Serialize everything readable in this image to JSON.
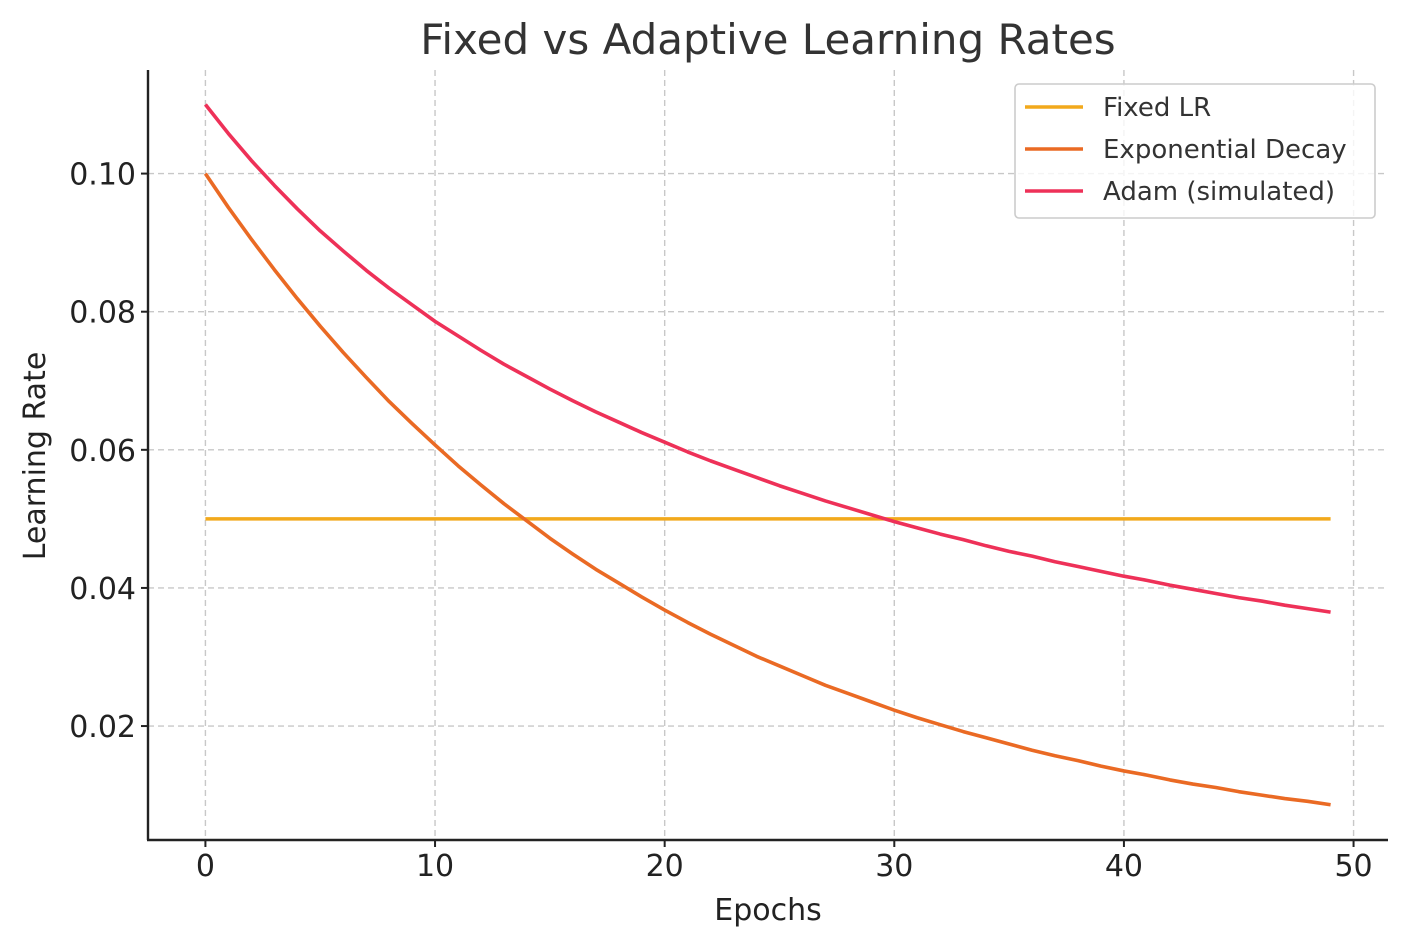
{
  "chart_data": {
    "type": "line",
    "title": "Fixed vs Adaptive Learning Rates",
    "xlabel": "Epochs",
    "ylabel": "Learning Rate",
    "xlim": [
      -2.5,
      51.5
    ],
    "ylim": [
      0.0035,
      0.115
    ],
    "xticks": [
      0,
      10,
      20,
      30,
      40,
      50
    ],
    "xtick_labels": [
      "0",
      "10",
      "20",
      "30",
      "40",
      "50"
    ],
    "yticks": [
      0.02,
      0.04,
      0.06,
      0.08,
      0.1
    ],
    "ytick_labels": [
      "0.02",
      "0.04",
      "0.06",
      "0.08",
      "0.10"
    ],
    "grid": true,
    "legend_position": "top-right",
    "x": [
      0,
      1,
      2,
      3,
      4,
      5,
      6,
      7,
      8,
      9,
      10,
      11,
      12,
      13,
      14,
      15,
      16,
      17,
      18,
      19,
      20,
      21,
      22,
      23,
      24,
      25,
      26,
      27,
      28,
      29,
      30,
      31,
      32,
      33,
      34,
      35,
      36,
      37,
      38,
      39,
      40,
      41,
      42,
      43,
      44,
      45,
      46,
      47,
      48,
      49
    ],
    "series": [
      {
        "name": "Fixed LR",
        "color": "#f2a91c",
        "values": [
          0.05,
          0.05,
          0.05,
          0.05,
          0.05,
          0.05,
          0.05,
          0.05,
          0.05,
          0.05,
          0.05,
          0.05,
          0.05,
          0.05,
          0.05,
          0.05,
          0.05,
          0.05,
          0.05,
          0.05,
          0.05,
          0.05,
          0.05,
          0.05,
          0.05,
          0.05,
          0.05,
          0.05,
          0.05,
          0.05,
          0.05,
          0.05,
          0.05,
          0.05,
          0.05,
          0.05,
          0.05,
          0.05,
          0.05,
          0.05,
          0.05,
          0.05,
          0.05,
          0.05,
          0.05,
          0.05,
          0.05,
          0.05,
          0.05,
          0.05
        ]
      },
      {
        "name": "Exponential Decay",
        "color": "#ea6a24",
        "values": [
          0.1,
          0.0951,
          0.0905,
          0.0861,
          0.0819,
          0.0779,
          0.0741,
          0.0705,
          0.067,
          0.0638,
          0.0607,
          0.0577,
          0.0549,
          0.0522,
          0.0497,
          0.0472,
          0.0449,
          0.0427,
          0.0407,
          0.0387,
          0.0368,
          0.035,
          0.0333,
          0.0317,
          0.0301,
          0.0287,
          0.0273,
          0.0259,
          0.0247,
          0.0235,
          0.0223,
          0.0212,
          0.0202,
          0.0192,
          0.0183,
          0.0174,
          0.0165,
          0.0157,
          0.015,
          0.0142,
          0.0135,
          0.0129,
          0.0122,
          0.0116,
          0.0111,
          0.0105,
          0.01,
          0.0095,
          0.0091,
          0.0086
        ]
      },
      {
        "name": "Adam (simulated)",
        "color": "#ee3158",
        "values": [
          0.11,
          0.1058,
          0.1019,
          0.0983,
          0.0949,
          0.0917,
          0.0888,
          0.086,
          0.0834,
          0.081,
          0.0786,
          0.0765,
          0.0744,
          0.0724,
          0.0706,
          0.0688,
          0.0671,
          0.0655,
          0.064,
          0.0625,
          0.0611,
          0.0597,
          0.0584,
          0.0572,
          0.056,
          0.0548,
          0.0537,
          0.0526,
          0.0516,
          0.0506,
          0.0496,
          0.0487,
          0.0478,
          0.047,
          0.0461,
          0.0453,
          0.0446,
          0.0438,
          0.0431,
          0.0424,
          0.0417,
          0.0411,
          0.0404,
          0.0398,
          0.0392,
          0.0386,
          0.0381,
          0.0375,
          0.037,
          0.0365
        ]
      }
    ]
  }
}
